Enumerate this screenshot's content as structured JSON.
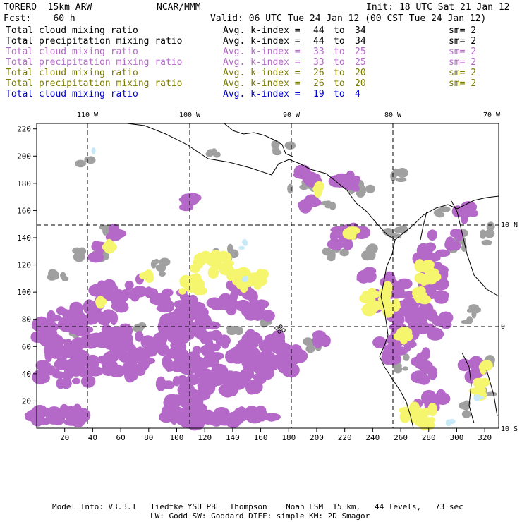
{
  "header": {
    "model": "TORERO  15km ARW",
    "center": "NCAR/MMM",
    "init": "Init: 18 UTC Sat 21 Jan 12",
    "fcst": "Fcst:    60 h",
    "valid": "Valid: 06 UTC Tue 24 Jan 12 (00 CST Tue 24 Jan 12)"
  },
  "legend": [
    {
      "field": "Total cloud mixing ratio",
      "idx_label": "Avg. k-index =",
      "from": "44",
      "to_word": "to",
      "to": "34",
      "sm": "sm= 2",
      "color": "#000000"
    },
    {
      "field": "Total precipitation mixing ratio",
      "idx_label": "Avg. k-index =",
      "from": "44",
      "to_word": "to",
      "to": "34",
      "sm": "sm= 2",
      "color": "#000000"
    },
    {
      "field": "Total cloud mixing ratio",
      "idx_label": "Avg. k-index =",
      "from": "33",
      "to_word": "to",
      "to": "25",
      "sm": "sm= 2",
      "color": "#b469c8"
    },
    {
      "field": "Total precipitation mixing ratio",
      "idx_label": "Avg. k-index =",
      "from": "33",
      "to_word": "to",
      "to": "25",
      "sm": "sm= 2",
      "color": "#b469c8"
    },
    {
      "field": "Total cloud mixing ratio",
      "idx_label": "Avg. k-index =",
      "from": "26",
      "to_word": "to",
      "to": "20",
      "sm": "sm= 2",
      "color": "#7a7a00"
    },
    {
      "field": "Total precipitation mixing ratio",
      "idx_label": "Avg. k-index =",
      "from": "26",
      "to_word": "to",
      "to": "20",
      "sm": "sm= 2",
      "color": "#7a7a00"
    },
    {
      "field": "Total cloud mixing ratio",
      "idx_label": "Avg. k-index =",
      "from": "19",
      "to_word": "to",
      "to": "4",
      "sm": "",
      "color": "#0000c8"
    }
  ],
  "map": {
    "lon_labels": [
      "110 W",
      "100 W",
      "90 W",
      "80 W",
      "70 W"
    ],
    "lat_labels": [
      "10 N",
      "0",
      "10 S"
    ],
    "x_ticks": [
      "20",
      "40",
      "60",
      "80",
      "100",
      "120",
      "140",
      "160",
      "180",
      "200",
      "220",
      "240",
      "260",
      "280",
      "300",
      "320"
    ],
    "y_ticks": [
      "20",
      "40",
      "60",
      "80",
      "100",
      "120",
      "140",
      "160",
      "180",
      "200",
      "220"
    ],
    "colors": {
      "gray": "#a0a0a0",
      "purple": "#b469c8",
      "yellow": "#f5f56e",
      "lightblue": "#c8eaf8",
      "coast": "#000000"
    }
  },
  "footer": {
    "line1": "Model Info: V3.3.1   Tiedtke YSU PBL  Thompson    Noah LSM  15 km,   44 levels,   73 sec",
    "line2": "LW: Godd SW: Goddard DIFF: simple KM: 2D Smagor"
  }
}
